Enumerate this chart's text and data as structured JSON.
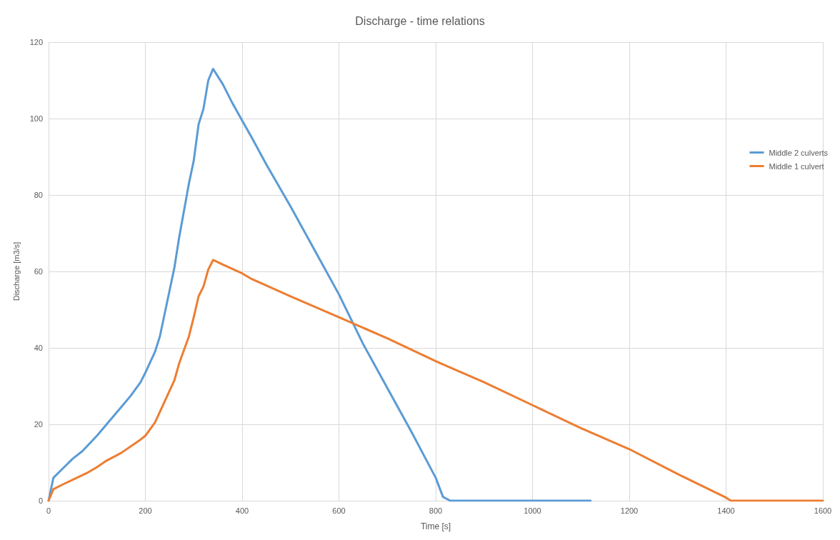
{
  "chart_data": {
    "type": "line",
    "title": "Discharge - time relations",
    "xlabel": "Time [s]",
    "ylabel": "Discharge [m3/s]",
    "xlim": [
      0,
      1600
    ],
    "xticks": [
      0,
      200,
      400,
      600,
      800,
      1000,
      1200,
      1400,
      1600
    ],
    "ylim": [
      0,
      120
    ],
    "yticks": [
      0,
      20,
      40,
      60,
      80,
      100,
      120
    ],
    "grid": true,
    "legend": "right",
    "marker": "none",
    "line_style": "solid",
    "series": [
      {
        "name": "Middle 2 culverts",
        "color": "#5b9bd5",
        "x": [
          0,
          10,
          30,
          50,
          70,
          100,
          120,
          150,
          170,
          190,
          200,
          220,
          230,
          250,
          260,
          270,
          280,
          290,
          300,
          310,
          320,
          330,
          340,
          360,
          380,
          400,
          420,
          450,
          500,
          550,
          600,
          650,
          700,
          750,
          800,
          815,
          830,
          1120
        ],
        "values": [
          0,
          6,
          8.5,
          11,
          13,
          17,
          20,
          24.5,
          27.5,
          31,
          33.5,
          39,
          43,
          55,
          61,
          69,
          76,
          83,
          89,
          98.5,
          102.5,
          110,
          113,
          109,
          104,
          99.5,
          95,
          88,
          77,
          65.5,
          54,
          41,
          29.5,
          18,
          6,
          1,
          0,
          0
        ]
      },
      {
        "name": "Middle 1 culvert",
        "color": "#ed7d31",
        "x": [
          0,
          10,
          30,
          50,
          80,
          100,
          120,
          150,
          190,
          200,
          220,
          240,
          260,
          270,
          290,
          300,
          310,
          320,
          330,
          340,
          360,
          400,
          420,
          500,
          600,
          700,
          800,
          900,
          1000,
          1100,
          1200,
          1300,
          1400,
          1410,
          1600
        ],
        "values": [
          0,
          3,
          4.3,
          5.5,
          7.3,
          8.8,
          10.5,
          12.5,
          16,
          17,
          20.5,
          26,
          31.5,
          36,
          43,
          48,
          53.5,
          56,
          60.5,
          63,
          61.8,
          59.5,
          58,
          53.5,
          48,
          42.5,
          36.5,
          31,
          25,
          19,
          13.5,
          7,
          0.8,
          0,
          0
        ]
      }
    ]
  }
}
